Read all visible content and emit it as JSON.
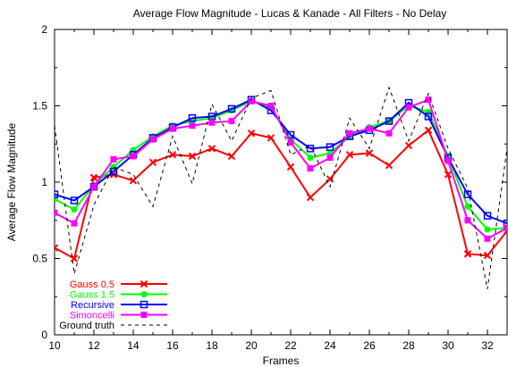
{
  "chart_data": {
    "type": "line",
    "title": "Average Flow Magnitude - Lucas & Kanade - All Filters - No Delay",
    "xlabel": "Frames",
    "ylabel": "Average Flow Magnitude",
    "xlim": [
      10,
      33
    ],
    "ylim": [
      0,
      2
    ],
    "xticks": [
      10,
      12,
      14,
      16,
      18,
      20,
      22,
      24,
      26,
      28,
      30,
      32
    ],
    "yticks": [
      0,
      0.5,
      1,
      1.5,
      2
    ],
    "xtick_labels": [
      "10",
      "12",
      "14",
      "16",
      "18",
      "20",
      "22",
      "24",
      "26",
      "28",
      "30",
      "32"
    ],
    "ytick_labels": [
      "0",
      "0.5",
      "1",
      "1.5",
      "2"
    ],
    "grid": false,
    "legend_position": "bottom-left",
    "x": [
      10,
      11,
      12,
      13,
      14,
      15,
      16,
      17,
      18,
      19,
      20,
      21,
      22,
      23,
      24,
      25,
      26,
      27,
      28,
      29,
      30,
      31,
      32,
      33
    ],
    "series": [
      {
        "name": "Gauss 0.5",
        "color": "#ff0000",
        "marker": "x",
        "values": [
          0.57,
          0.5,
          1.03,
          1.05,
          1.01,
          1.13,
          1.18,
          1.17,
          1.22,
          1.17,
          1.32,
          1.29,
          1.1,
          0.9,
          1.02,
          1.18,
          1.19,
          1.11,
          1.24,
          1.34,
          1.05,
          0.53,
          0.52,
          0.68
        ]
      },
      {
        "name": "Gauss 1.5",
        "color": "#00ff00",
        "marker": "circle",
        "values": [
          0.89,
          0.82,
          0.98,
          1.1,
          1.21,
          1.3,
          1.37,
          1.4,
          1.42,
          1.47,
          1.53,
          1.49,
          1.28,
          1.16,
          1.19,
          1.3,
          1.36,
          1.4,
          1.5,
          1.46,
          1.17,
          0.84,
          0.69,
          0.7
        ]
      },
      {
        "name": "Recursive",
        "color": "#0000ff",
        "marker": "square",
        "values": [
          0.92,
          0.88,
          0.97,
          1.07,
          1.18,
          1.29,
          1.36,
          1.42,
          1.43,
          1.48,
          1.54,
          1.47,
          1.31,
          1.22,
          1.23,
          1.3,
          1.34,
          1.4,
          1.52,
          1.43,
          1.16,
          0.92,
          0.78,
          0.73
        ]
      },
      {
        "name": "Simoncelli",
        "color": "#ff00ff",
        "marker": "square-filled",
        "values": [
          0.8,
          0.73,
          0.97,
          1.15,
          1.17,
          1.28,
          1.35,
          1.37,
          1.39,
          1.4,
          1.53,
          1.5,
          1.26,
          1.09,
          1.16,
          1.32,
          1.35,
          1.32,
          1.49,
          1.54,
          1.14,
          0.75,
          0.63,
          0.7
        ]
      },
      {
        "name": "Ground truth",
        "color": "#000000",
        "marker": "none",
        "dash": "dashed",
        "values": [
          1.37,
          0.4,
          0.85,
          1.1,
          1.05,
          0.84,
          1.3,
          0.99,
          1.51,
          1.27,
          1.55,
          1.6,
          1.18,
          1.24,
          0.97,
          1.42,
          1.22,
          1.62,
          1.27,
          1.58,
          1.22,
          0.96,
          0.3,
          1.22
        ]
      }
    ]
  }
}
